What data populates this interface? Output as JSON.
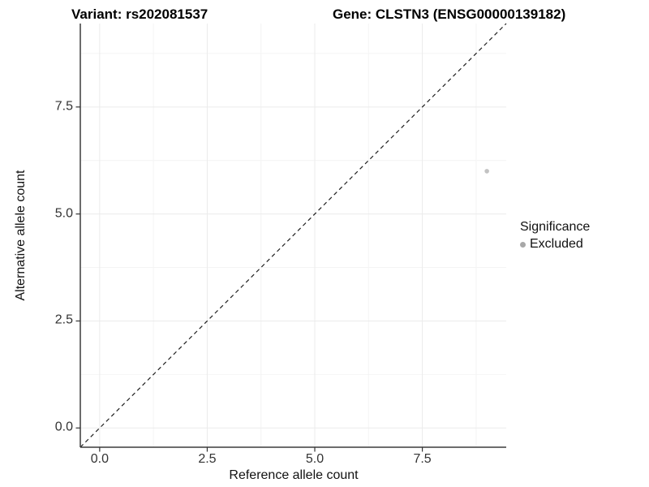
{
  "titles": {
    "variant": "Variant: rs202081537",
    "gene": "Gene: CLSTN3 (ENSG00000139182)"
  },
  "chart_data": {
    "type": "scatter",
    "xlabel": "Reference allele count",
    "ylabel": "Alternative allele count",
    "xlim": [
      -0.45,
      9.45
    ],
    "ylim": [
      -0.45,
      9.45
    ],
    "x_ticks": [
      0.0,
      2.5,
      5.0,
      7.5
    ],
    "y_ticks": [
      0.0,
      2.5,
      5.0,
      7.5
    ],
    "x_tick_labels": [
      "0.0",
      "2.5",
      "5.0",
      "7.5"
    ],
    "y_tick_labels": [
      "0.0",
      "2.5",
      "5.0",
      "7.5"
    ],
    "minor_gridlines": [
      1.25,
      3.75,
      6.25,
      8.75
    ],
    "grid": true,
    "points": [
      {
        "x": 9,
        "y": 6,
        "significance": "Excluded"
      }
    ],
    "reference_line": {
      "type": "identity",
      "slope": 1,
      "intercept": 0,
      "style": "dashed"
    },
    "legend": {
      "title": "Significance",
      "position": "right",
      "entries": [
        {
          "label": "Excluded",
          "color": "#a8a8a8"
        }
      ]
    },
    "colors": {
      "point": "#c2c2c2",
      "legend_key": "#a8a8a8",
      "grid_major": "#ebebeb",
      "grid_minor": "#f4f4f4",
      "axis_line": "#3c3c3c",
      "tick_mark": "#333333",
      "dashed_line": "#1f1f1f",
      "background": "#ffffff"
    }
  }
}
